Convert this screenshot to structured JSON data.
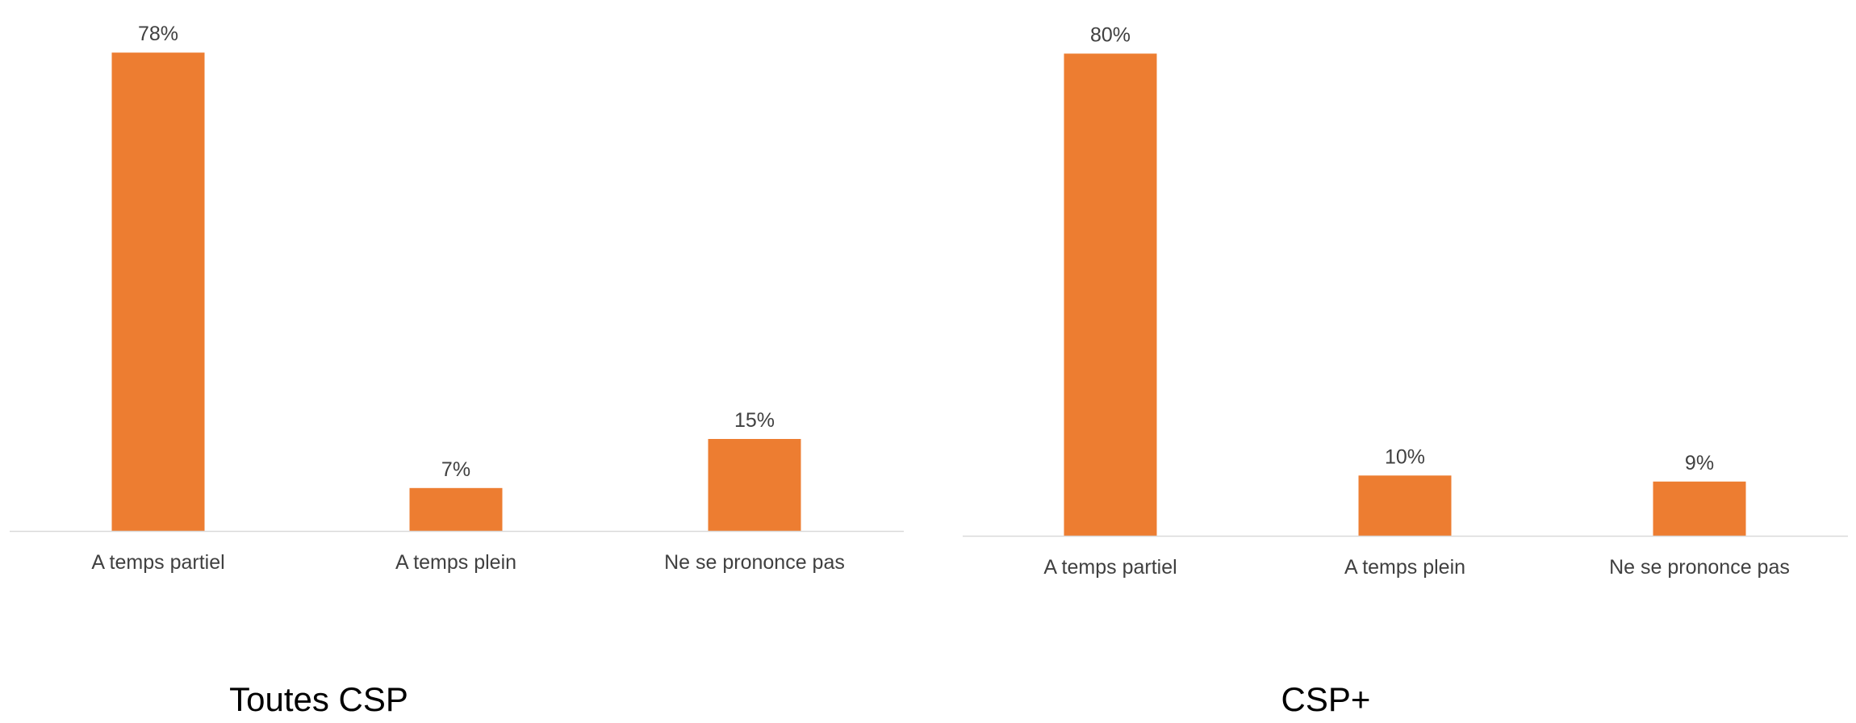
{
  "chart_data": [
    {
      "type": "bar",
      "title": "Toutes CSP",
      "categories": [
        "A temps partiel",
        "A temps plein",
        "Ne se prononce pas"
      ],
      "values": [
        78,
        7,
        15
      ],
      "value_labels": [
        "78%",
        "7%",
        "15%"
      ],
      "unit": "%",
      "ylim": [
        0,
        80
      ],
      "grid": false,
      "legend": "none",
      "bar_color": "#ED7D31",
      "axis_color": "#D9D9D9",
      "text_color": "#404040"
    },
    {
      "type": "bar",
      "title": "CSP+",
      "categories": [
        "A temps partiel",
        "A temps plein",
        "Ne se prononce pas"
      ],
      "values": [
        80,
        10,
        9
      ],
      "value_labels": [
        "80%",
        "10%",
        "9%"
      ],
      "unit": "%",
      "ylim": [
        0,
        82.2
      ],
      "grid": false,
      "legend": "none",
      "bar_color": "#ED7D31",
      "axis_color": "#D9D9D9",
      "text_color": "#404040"
    }
  ]
}
